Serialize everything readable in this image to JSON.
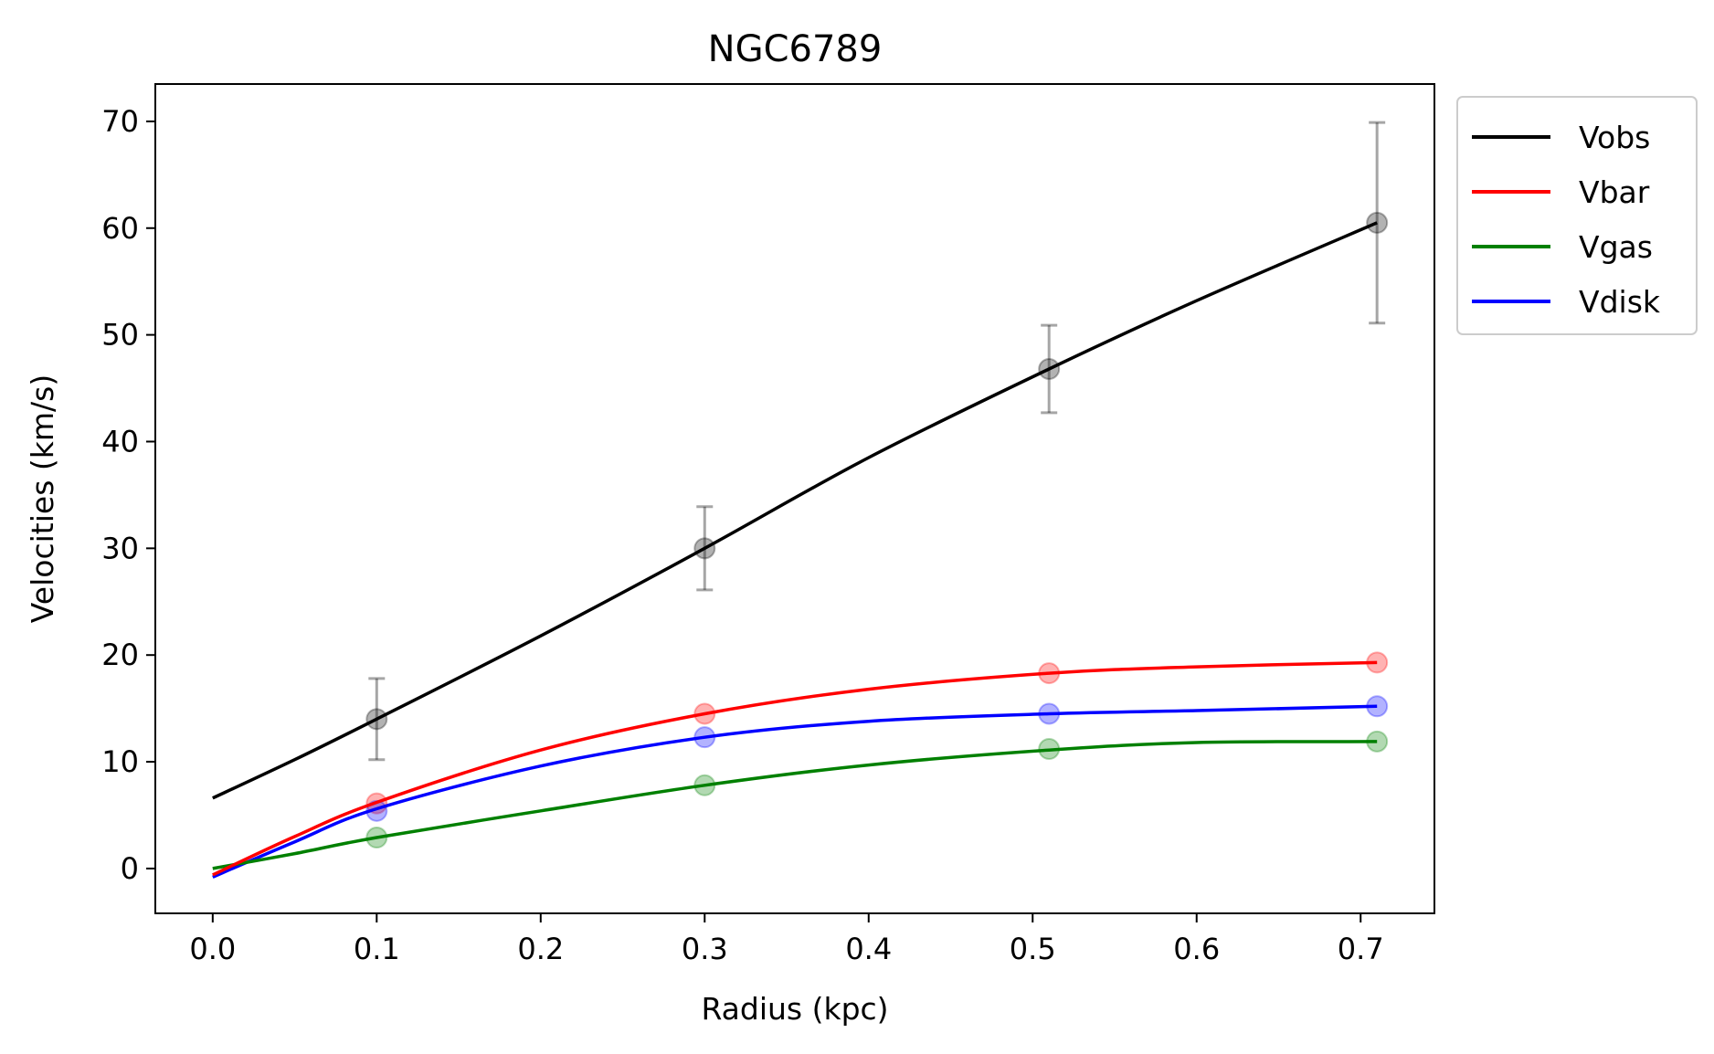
{
  "chart_data": {
    "type": "line",
    "title": "NGC6789",
    "xlabel": "Radius (kpc)",
    "ylabel": "Velocities (km/s)",
    "xlim": [
      -0.035,
      0.745
    ],
    "ylim": [
      -4.2,
      73.5
    ],
    "xticks": [
      0.0,
      0.1,
      0.2,
      0.3,
      0.4,
      0.5,
      0.6,
      0.7
    ],
    "xtick_labels": [
      "0.0",
      "0.1",
      "0.2",
      "0.3",
      "0.4",
      "0.5",
      "0.6",
      "0.7"
    ],
    "yticks": [
      0,
      10,
      20,
      30,
      40,
      50,
      60,
      70
    ],
    "ytick_labels": [
      "0",
      "10",
      "20",
      "30",
      "40",
      "50",
      "60",
      "70"
    ],
    "grid": false,
    "legend_position": "outside-top-right",
    "series": [
      {
        "name": "Vobs",
        "color": "#000000",
        "points_x": [
          0.1,
          0.3,
          0.51,
          0.71
        ],
        "points_y": [
          14.0,
          30.0,
          46.8,
          60.5
        ],
        "errors": [
          3.8,
          3.9,
          4.1,
          9.4
        ],
        "curve_x": [
          0.0,
          0.05,
          0.1,
          0.2,
          0.3,
          0.4,
          0.51,
          0.6,
          0.71
        ],
        "curve_y": [
          6.6,
          10.2,
          14.0,
          21.8,
          30.0,
          38.5,
          46.8,
          53.2,
          60.5
        ]
      },
      {
        "name": "Vbar",
        "color": "#ff0000",
        "points_x": [
          0.1,
          0.3,
          0.51,
          0.71
        ],
        "points_y": [
          6.1,
          14.5,
          18.3,
          19.3
        ],
        "curve_x": [
          0.0,
          0.05,
          0.1,
          0.2,
          0.3,
          0.4,
          0.51,
          0.6,
          0.71
        ],
        "curve_y": [
          -0.6,
          3.0,
          6.2,
          11.1,
          14.5,
          16.8,
          18.3,
          18.9,
          19.3
        ]
      },
      {
        "name": "Vgas",
        "color": "#008000",
        "points_x": [
          0.1,
          0.3,
          0.51,
          0.71
        ],
        "points_y": [
          2.9,
          7.8,
          11.2,
          11.9
        ],
        "curve_x": [
          0.0,
          0.05,
          0.1,
          0.2,
          0.3,
          0.4,
          0.51,
          0.6,
          0.71
        ],
        "curve_y": [
          0.0,
          1.4,
          2.9,
          5.4,
          7.8,
          9.7,
          11.1,
          11.8,
          11.9
        ]
      },
      {
        "name": "Vdisk",
        "color": "#0000ff",
        "points_x": [
          0.1,
          0.3,
          0.51,
          0.71
        ],
        "points_y": [
          5.4,
          12.3,
          14.5,
          15.2
        ],
        "curve_x": [
          0.0,
          0.05,
          0.1,
          0.2,
          0.3,
          0.4,
          0.51,
          0.6,
          0.71
        ],
        "curve_y": [
          -0.8,
          2.5,
          5.6,
          9.6,
          12.3,
          13.8,
          14.5,
          14.8,
          15.2
        ]
      }
    ]
  }
}
